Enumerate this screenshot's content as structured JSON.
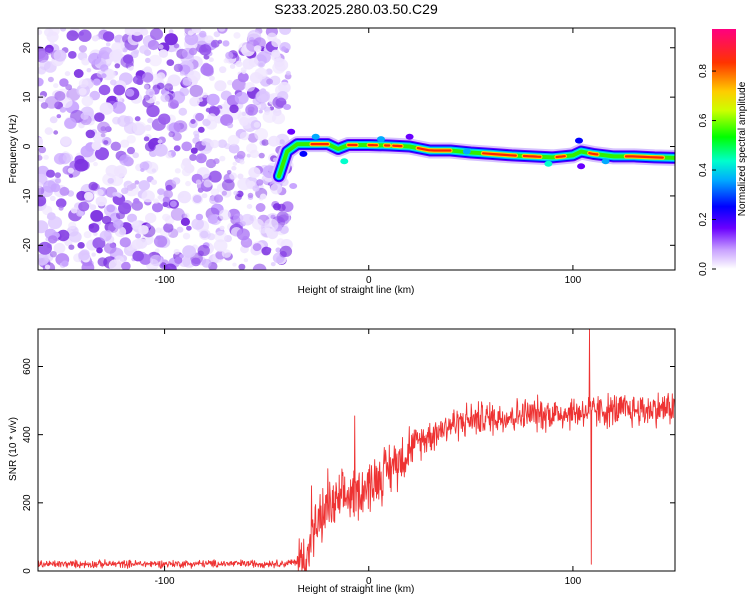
{
  "title": "S233.2025.280.03.50.C29",
  "chart_data": [
    {
      "type": "heatmap",
      "xlabel": "Height of straight line (km)",
      "ylabel": "Frequency (Hz)",
      "xlim": [
        -162,
        150
      ],
      "ylim": [
        -25,
        24
      ],
      "x_ticks": [
        -100,
        0,
        100
      ],
      "x_tick_labels": [
        "-100",
        "0",
        "100"
      ],
      "y_ticks": [
        -20,
        -10,
        0,
        10,
        20
      ],
      "y_tick_labels": [
        "-20",
        "-10",
        "0",
        "10",
        "20"
      ],
      "noise_region_x": [
        -162,
        -42
      ],
      "signal_ridge": {
        "x": [
          -44,
          -40,
          -35,
          -30,
          -20,
          -15,
          -10,
          0,
          10,
          20,
          30,
          40,
          50,
          60,
          70,
          80,
          90,
          100,
          104,
          110,
          120,
          130,
          140,
          150
        ],
        "frequency": [
          -6,
          -1,
          0.5,
          0.5,
          0.5,
          -0.5,
          0.3,
          0.3,
          0.2,
          0,
          -0.8,
          -0.8,
          -1.2,
          -1.5,
          -1.8,
          -2,
          -2.2,
          -1.8,
          -1,
          -1.5,
          -2,
          -2,
          -2.2,
          -2.3
        ]
      },
      "peak_segments_x": [
        [
          -28,
          -20
        ],
        [
          -10,
          -6
        ],
        [
          0,
          4
        ],
        [
          8,
          10
        ],
        [
          12,
          16
        ],
        [
          24,
          40
        ],
        [
          56,
          72
        ],
        [
          76,
          84
        ],
        [
          92,
          96
        ],
        [
          108,
          112
        ],
        [
          126,
          144
        ]
      ],
      "colorbar": {
        "label": "Normalized spectral amplitude",
        "ticks": [
          0.0,
          0.2,
          0.4,
          0.6,
          0.8
        ],
        "tick_labels": [
          "0.0",
          "0.2",
          "0.4",
          "0.6",
          "0.8"
        ],
        "range": [
          0,
          0.97
        ]
      }
    },
    {
      "type": "line",
      "xlabel": "Height of straight line (km)",
      "ylabel": "SNR (10 * v/v)",
      "xlim": [
        -162,
        150
      ],
      "ylim": [
        0,
        710
      ],
      "x_ticks": [
        -100,
        0,
        100
      ],
      "x_tick_labels": [
        "-100",
        "0",
        "100"
      ],
      "y_ticks": [
        0,
        200,
        400,
        600
      ],
      "y_tick_labels": [
        "0",
        "200",
        "400",
        "600"
      ],
      "color": "#ee3333",
      "envelope": {
        "x": [
          -162,
          -40,
          -33,
          -30,
          -28,
          -25,
          -20,
          -15,
          -10,
          0,
          10,
          20,
          30,
          40,
          50,
          60,
          70,
          80,
          90,
          100,
          110,
          120,
          130,
          140,
          150
        ],
        "y": [
          20,
          22,
          30,
          50,
          90,
          140,
          180,
          200,
          220,
          250,
          300,
          360,
          400,
          430,
          445,
          450,
          455,
          460,
          462,
          465,
          470,
          470,
          472,
          475,
          480
        ]
      },
      "spikes": [
        {
          "x": -28,
          "y": 250
        },
        {
          "x": -20,
          "y": 300
        },
        {
          "x": -7,
          "y": 455
        },
        {
          "x": 108,
          "y": 710
        },
        {
          "x": 109,
          "y": 20
        }
      ]
    }
  ]
}
